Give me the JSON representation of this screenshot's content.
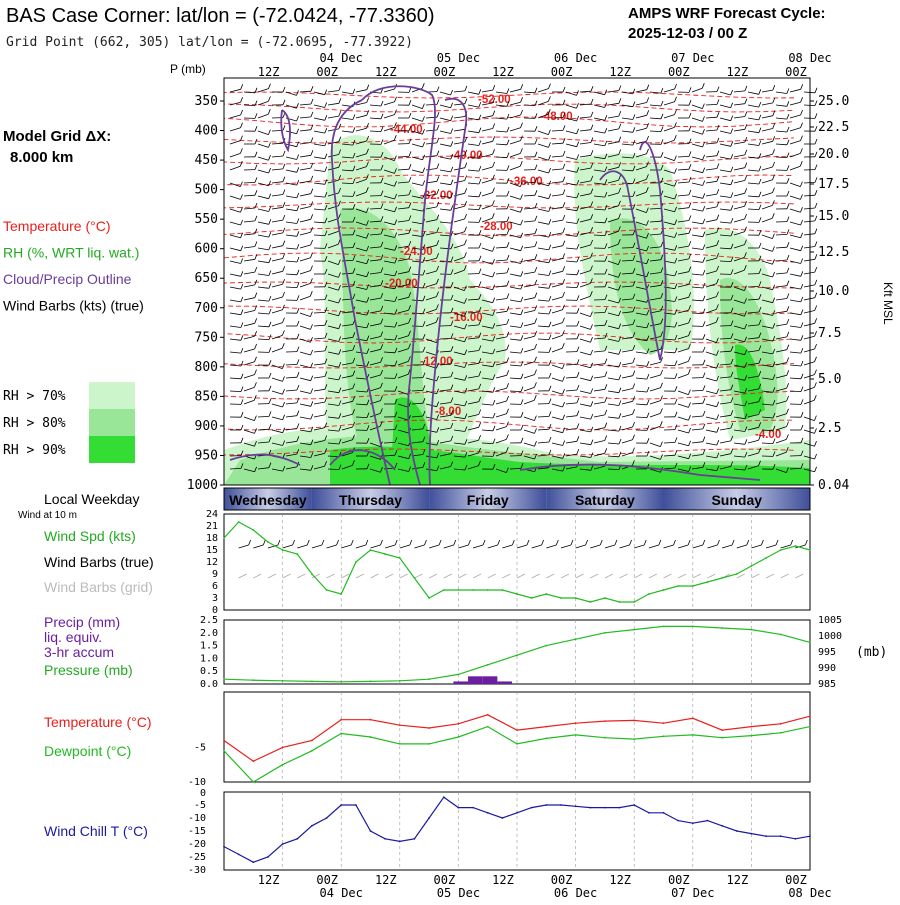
{
  "header": {
    "title": "BAS Case Corner:  lat/lon = (-72.0424, -77.3360)",
    "subtitle": "Grid Point (662, 305) lat/lon = (-72.0695, -77.3922)",
    "cycle_label": "AMPS WRF Forecast Cycle:",
    "cycle_value": "2025-12-03 / 00  Z"
  },
  "left_panel": {
    "model_grid_label": "Model Grid ΔX:",
    "model_grid_value": "8.000 km",
    "legend": [
      {
        "label": "Temperature (°C)",
        "color": "#e8201c"
      },
      {
        "label": "RH (%, WRT liq. wat.)",
        "color": "#22aa22"
      },
      {
        "label": "Cloud/Precip Outline",
        "color": "#6a3d9a"
      },
      {
        "label": "Wind Barbs (kts) (true)",
        "color": "#000000"
      }
    ],
    "rh_keys": [
      {
        "label": "RH > 70%",
        "color": "#ccf5cc"
      },
      {
        "label": "RH > 80%",
        "color": "#99e699"
      },
      {
        "label": "RH > 90%",
        "color": "#33dd33"
      }
    ]
  },
  "time_axis": {
    "top_hours": [
      "12Z",
      "00Z",
      "12Z",
      "00Z",
      "12Z",
      "00Z",
      "12Z",
      "00Z",
      "12Z",
      "00Z"
    ],
    "bottom_hours": [
      "12Z",
      "00Z",
      "12Z",
      "00Z",
      "12Z",
      "00Z",
      "12Z",
      "00Z",
      "12Z",
      "00Z"
    ],
    "date_labels": [
      "04 Dec",
      "05 Dec",
      "06 Dec",
      "07 Dec",
      "08 Dec"
    ]
  },
  "weekday_bar": {
    "label": "Local Weekday",
    "days": [
      "Wednesday",
      "Thursday",
      "Friday",
      "Saturday",
      "Sunday"
    ]
  },
  "cross_section": {
    "pressure_axis_title": "P (mb)",
    "pressure_ticks": [
      "350",
      "400",
      "450",
      "500",
      "550",
      "600",
      "650",
      "700",
      "750",
      "800",
      "850",
      "900",
      "950",
      "1000"
    ],
    "height_axis_title": "Kft MSL",
    "height_ticks": [
      "25.0",
      "22.5",
      "20.0",
      "17.5",
      "15.0",
      "12.5",
      "10.0",
      "7.5",
      "5.0",
      "2.5",
      "0.04"
    ],
    "isotherm_labels": [
      "-52.00",
      "-48.00",
      "-44.00",
      "-40.00",
      "-36.00",
      "-32.00",
      "-28.00",
      "-24.00",
      "-20.00",
      "-16.00",
      "-12.00",
      "-8.00",
      "-4.00"
    ]
  },
  "chart_data": [
    {
      "type": "line",
      "title": "Wind Spd (kts)",
      "subtitle": "Wind at 10 m",
      "series": [
        {
          "name": "Wind Spd (kts)",
          "color": "#22bb22",
          "x": [
            0,
            3,
            6,
            9,
            12,
            15,
            18,
            21,
            24,
            27,
            30,
            33,
            36,
            39,
            42,
            45,
            48,
            51,
            54,
            57,
            60,
            63,
            66,
            69,
            72,
            75,
            78,
            81,
            84,
            87,
            90,
            93,
            96,
            99,
            102,
            105,
            108,
            111,
            114,
            117,
            120
          ],
          "values": [
            18,
            22,
            20,
            17,
            15,
            14,
            9,
            5,
            4,
            12,
            15,
            14,
            13,
            8,
            3,
            5,
            5,
            5,
            5,
            5,
            4,
            3,
            4,
            3,
            3,
            2,
            3,
            2,
            2,
            4,
            5,
            6,
            6,
            7,
            8,
            9,
            11,
            13,
            15,
            16,
            15
          ]
        }
      ],
      "extra_labels": [
        "Wind Barbs (true)",
        "Wind Barbs (grid)"
      ],
      "y_ticks": [
        "24",
        "21",
        "18",
        "15",
        "12",
        "9",
        "6",
        "3",
        "0"
      ],
      "ylim": [
        0,
        24
      ]
    },
    {
      "type": "bar+line",
      "title": "Precip (mm) liq. equiv. 3-hr accum / Pressure (mb)",
      "labels": [
        "Precip (mm)",
        "liq. equiv.",
        "3-hr accum",
        "Pressure (mb)"
      ],
      "precip": {
        "x": [
          48,
          51,
          54,
          57
        ],
        "values": [
          0.1,
          0.3,
          0.3,
          0.1
        ],
        "color": "#6a1fa0",
        "ylim": [
          0,
          2.5
        ],
        "y_ticks": [
          "2.5",
          "2.0",
          "1.5",
          "1.0",
          "0.5",
          "0.0"
        ]
      },
      "pressure": {
        "color": "#22bb22",
        "x": [
          0,
          6,
          12,
          18,
          24,
          30,
          36,
          42,
          48,
          54,
          60,
          66,
          72,
          78,
          84,
          90,
          96,
          102,
          108,
          114,
          120
        ],
        "values": [
          986.5,
          986.2,
          986,
          985.8,
          985.7,
          985.8,
          986,
          986.5,
          988,
          991,
          994,
          997,
          999,
          1001,
          1002,
          1003,
          1003,
          1002.5,
          1002,
          1000.5,
          998
        ],
        "ylim": [
          985,
          1005
        ],
        "y_ticks": [
          "1005",
          "1000",
          "995",
          "990",
          "985"
        ],
        "unit": "(mb)"
      }
    },
    {
      "type": "line",
      "title": "Temperature / Dewpoint (°C)",
      "series": [
        {
          "name": "Temperature (°C)",
          "color": "#e8201c",
          "x": [
            0,
            6,
            12,
            18,
            24,
            30,
            36,
            42,
            48,
            54,
            60,
            66,
            72,
            78,
            84,
            90,
            96,
            102,
            108,
            114,
            120
          ],
          "values": [
            -4,
            -7,
            -5,
            -4,
            -1,
            -1,
            -1.8,
            -2.2,
            -1.6,
            -0.3,
            -2.5,
            -2,
            -1.5,
            -1.2,
            -1.1,
            -1.5,
            -0.8,
            -2.5,
            -2,
            -1.6,
            -0.5
          ]
        },
        {
          "name": "Dewpoint (°C)",
          "color": "#22bb22",
          "x": [
            0,
            6,
            12,
            18,
            24,
            30,
            36,
            42,
            48,
            54,
            60,
            66,
            72,
            78,
            84,
            90,
            96,
            102,
            108,
            114,
            120
          ],
          "values": [
            -5.5,
            -10,
            -7.5,
            -5.5,
            -3,
            -3.5,
            -4.5,
            -4.5,
            -3.5,
            -2,
            -4.5,
            -3.7,
            -3.2,
            -3.6,
            -3.8,
            -3.4,
            -3.2,
            -3.6,
            -3.3,
            -2.9,
            -2
          ]
        }
      ],
      "y_ticks": [
        "-5",
        "-10"
      ],
      "ylim": [
        -10,
        3
      ]
    },
    {
      "type": "line",
      "title": "Wind Chill T (°C)",
      "series": [
        {
          "name": "Wind Chill T (°C)",
          "color": "#1a1aa0",
          "x": [
            0,
            3,
            6,
            9,
            12,
            15,
            18,
            21,
            24,
            27,
            30,
            33,
            36,
            39,
            42,
            45,
            48,
            51,
            54,
            57,
            60,
            63,
            66,
            69,
            72,
            75,
            78,
            81,
            84,
            87,
            90,
            93,
            96,
            99,
            102,
            105,
            108,
            111,
            114,
            117,
            120
          ],
          "values": [
            -21,
            -24,
            -27,
            -25,
            -20,
            -18,
            -13,
            -10,
            -5,
            -5,
            -15,
            -18,
            -19,
            -18,
            -10,
            -2,
            -6,
            -6,
            -8,
            -10,
            -8,
            -6,
            -5,
            -5,
            -5.5,
            -6,
            -6,
            -6,
            -5,
            -8,
            -8,
            -11,
            -12,
            -11,
            -13,
            -15,
            -16,
            -17,
            -17,
            -18,
            -17
          ]
        }
      ],
      "y_ticks": [
        "-5",
        "-10",
        "-15",
        "-20",
        "-25",
        "-30"
      ],
      "y_top_tick": "0",
      "ylim": [
        -30,
        0
      ]
    }
  ]
}
